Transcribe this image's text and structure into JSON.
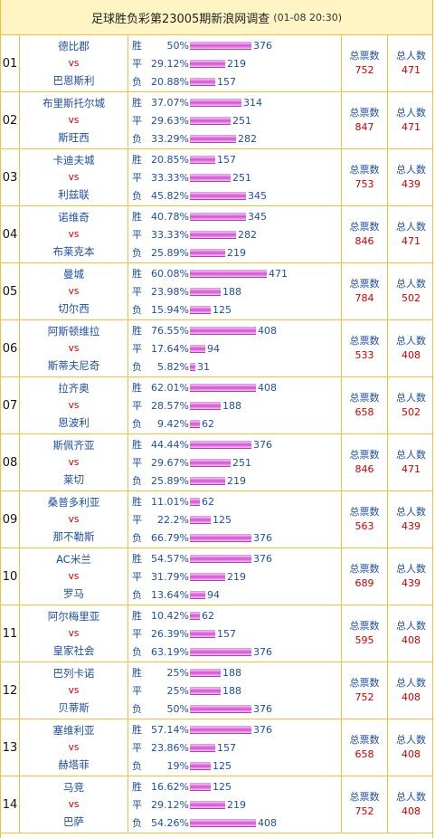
{
  "header": {
    "title": "足球胜负彩第23005期新浪网调查",
    "timestamp": "(01-08 20:30)"
  },
  "labels": {
    "win": "胜",
    "draw": "平",
    "loss": "负",
    "vs": "vs",
    "total_votes": "总票数",
    "total_people": "总人数"
  },
  "colors": {
    "border": "#f0c040",
    "header_bg": "#fff4c4",
    "text_blue": "#1f4e9c",
    "text_red": "#cc0000",
    "bar": "#d252d2"
  },
  "matches": [
    {
      "idx": "01",
      "home": "德比郡",
      "away": "巴恩斯利",
      "win_pct": "50%",
      "win_votes": 376,
      "draw_pct": "29.12%",
      "draw_votes": 219,
      "loss_pct": "20.88%",
      "loss_votes": 157,
      "total_votes": 752,
      "total_people": 471
    },
    {
      "idx": "02",
      "home": "布里斯托尔城",
      "away": "斯旺西",
      "win_pct": "37.07%",
      "win_votes": 314,
      "draw_pct": "29.63%",
      "draw_votes": 251,
      "loss_pct": "33.29%",
      "loss_votes": 282,
      "total_votes": 847,
      "total_people": 471
    },
    {
      "idx": "03",
      "home": "卡迪夫城",
      "away": "利兹联",
      "win_pct": "20.85%",
      "win_votes": 157,
      "draw_pct": "33.33%",
      "draw_votes": 251,
      "loss_pct": "45.82%",
      "loss_votes": 345,
      "total_votes": 753,
      "total_people": 439
    },
    {
      "idx": "04",
      "home": "诺维奇",
      "away": "布莱克本",
      "win_pct": "40.78%",
      "win_votes": 345,
      "draw_pct": "33.33%",
      "draw_votes": 282,
      "loss_pct": "25.89%",
      "loss_votes": 219,
      "total_votes": 846,
      "total_people": 471
    },
    {
      "idx": "05",
      "home": "曼城",
      "away": "切尔西",
      "win_pct": "60.08%",
      "win_votes": 471,
      "draw_pct": "23.98%",
      "draw_votes": 188,
      "loss_pct": "15.94%",
      "loss_votes": 125,
      "total_votes": 784,
      "total_people": 502
    },
    {
      "idx": "06",
      "home": "阿斯顿维拉",
      "away": "斯蒂夫尼奇",
      "win_pct": "76.55%",
      "win_votes": 408,
      "draw_pct": "17.64%",
      "draw_votes": 94,
      "loss_pct": "5.82%",
      "loss_votes": 31,
      "total_votes": 533,
      "total_people": 408
    },
    {
      "idx": "07",
      "home": "拉齐奥",
      "away": "恩波利",
      "win_pct": "62.01%",
      "win_votes": 408,
      "draw_pct": "28.57%",
      "draw_votes": 188,
      "loss_pct": "9.42%",
      "loss_votes": 62,
      "total_votes": 658,
      "total_people": 502
    },
    {
      "idx": "08",
      "home": "斯佩齐亚",
      "away": "莱切",
      "win_pct": "44.44%",
      "win_votes": 376,
      "draw_pct": "29.67%",
      "draw_votes": 251,
      "loss_pct": "25.89%",
      "loss_votes": 219,
      "total_votes": 846,
      "total_people": 471
    },
    {
      "idx": "09",
      "home": "桑普多利亚",
      "away": "那不勒斯",
      "win_pct": "11.01%",
      "win_votes": 62,
      "draw_pct": "22.2%",
      "draw_votes": 125,
      "loss_pct": "66.79%",
      "loss_votes": 376,
      "total_votes": 563,
      "total_people": 439
    },
    {
      "idx": "10",
      "home": "AC米兰",
      "away": "罗马",
      "win_pct": "54.57%",
      "win_votes": 376,
      "draw_pct": "31.79%",
      "draw_votes": 219,
      "loss_pct": "13.64%",
      "loss_votes": 94,
      "total_votes": 689,
      "total_people": 439
    },
    {
      "idx": "11",
      "home": "阿尔梅里亚",
      "away": "皇家社会",
      "win_pct": "10.42%",
      "win_votes": 62,
      "draw_pct": "26.39%",
      "draw_votes": 157,
      "loss_pct": "63.19%",
      "loss_votes": 376,
      "total_votes": 595,
      "total_people": 408
    },
    {
      "idx": "12",
      "home": "巴列卡诺",
      "away": "贝蒂斯",
      "win_pct": "25%",
      "win_votes": 188,
      "draw_pct": "25%",
      "draw_votes": 188,
      "loss_pct": "50%",
      "loss_votes": 376,
      "total_votes": 752,
      "total_people": 408
    },
    {
      "idx": "13",
      "home": "塞维利亚",
      "away": "赫塔菲",
      "win_pct": "57.14%",
      "win_votes": 376,
      "draw_pct": "23.86%",
      "draw_votes": 157,
      "loss_pct": "19%",
      "loss_votes": 125,
      "total_votes": 658,
      "total_people": 408
    },
    {
      "idx": "14",
      "home": "马竞",
      "away": "巴萨",
      "win_pct": "16.62%",
      "win_votes": 125,
      "draw_pct": "29.12%",
      "draw_votes": 219,
      "loss_pct": "54.26%",
      "loss_votes": 408,
      "total_votes": 752,
      "total_people": 408
    }
  ]
}
